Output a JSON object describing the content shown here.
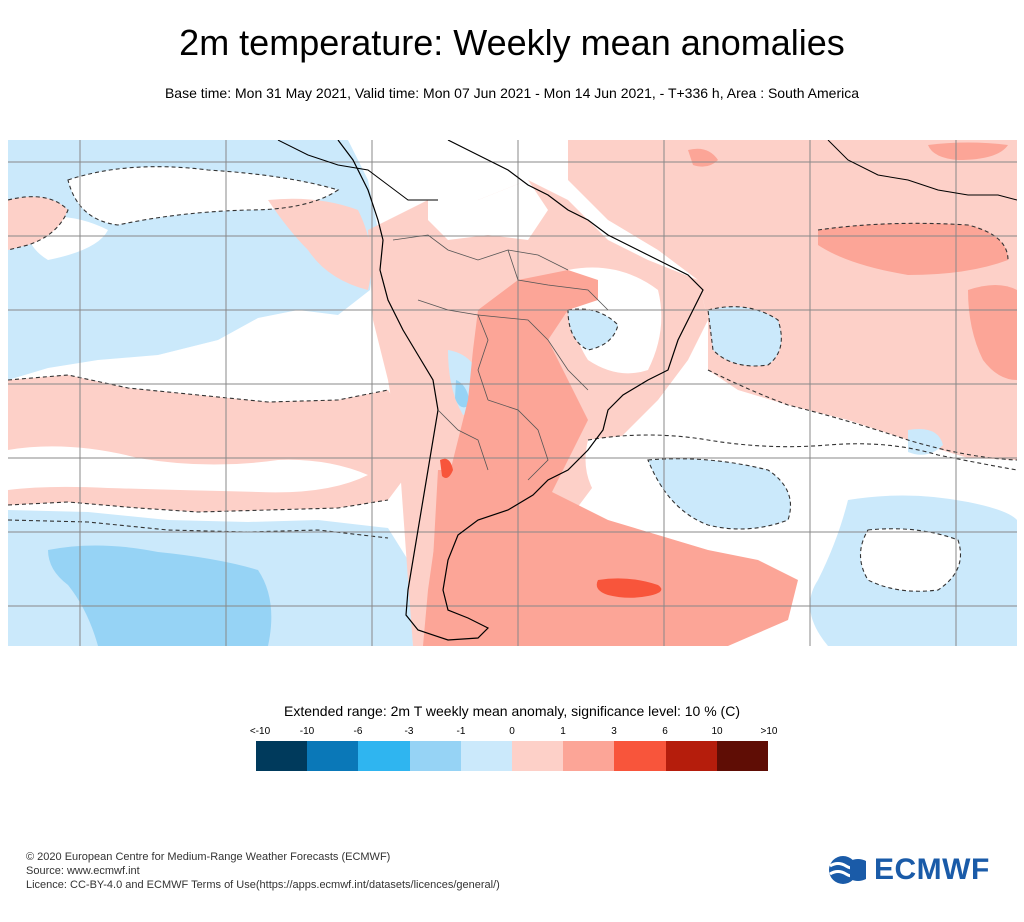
{
  "header": {
    "title": "2m temperature: Weekly mean anomalies",
    "subtitle": "Base time: Mon 31 May 2021, Valid time: Mon 07 Jun 2021 - Mon 14 Jun 2021, - T+336 h, Area : South America"
  },
  "legend": {
    "title": "Extended range: 2m T weekly mean anomaly, significance level: 10 % (C)",
    "labels": [
      "<-10",
      "-10",
      "-6",
      "-3",
      "-1",
      "0",
      "1",
      "3",
      "6",
      "10",
      ">10"
    ],
    "colors": [
      "#003a5c",
      "#0a78b8",
      "#2fb5f0",
      "#96d3f5",
      "#cbe9fb",
      "#fdd0c8",
      "#fca597",
      "#f8553b",
      "#b51d0c",
      "#5f0d05"
    ]
  },
  "footer": {
    "copyright": "© 2020 European Centre for Medium-Range Weather Forecasts (ECMWF)",
    "source": "Source: www.ecmwf.int",
    "licence": "Licence: CC-BY-4.0 and ECMWF Terms of Use(https://apps.ecmwf.int/datasets/licences/general/)"
  },
  "logo": {
    "text": "ECMWF",
    "color": "#1a5ba8"
  },
  "map_colors": {
    "light_blue": "#cbe9fb",
    "blue": "#96d3f5",
    "light_red": "#fdd0c8",
    "red": "#fca597",
    "dark_red": "#f8553b",
    "grid": "#888888",
    "coast": "#000000"
  }
}
